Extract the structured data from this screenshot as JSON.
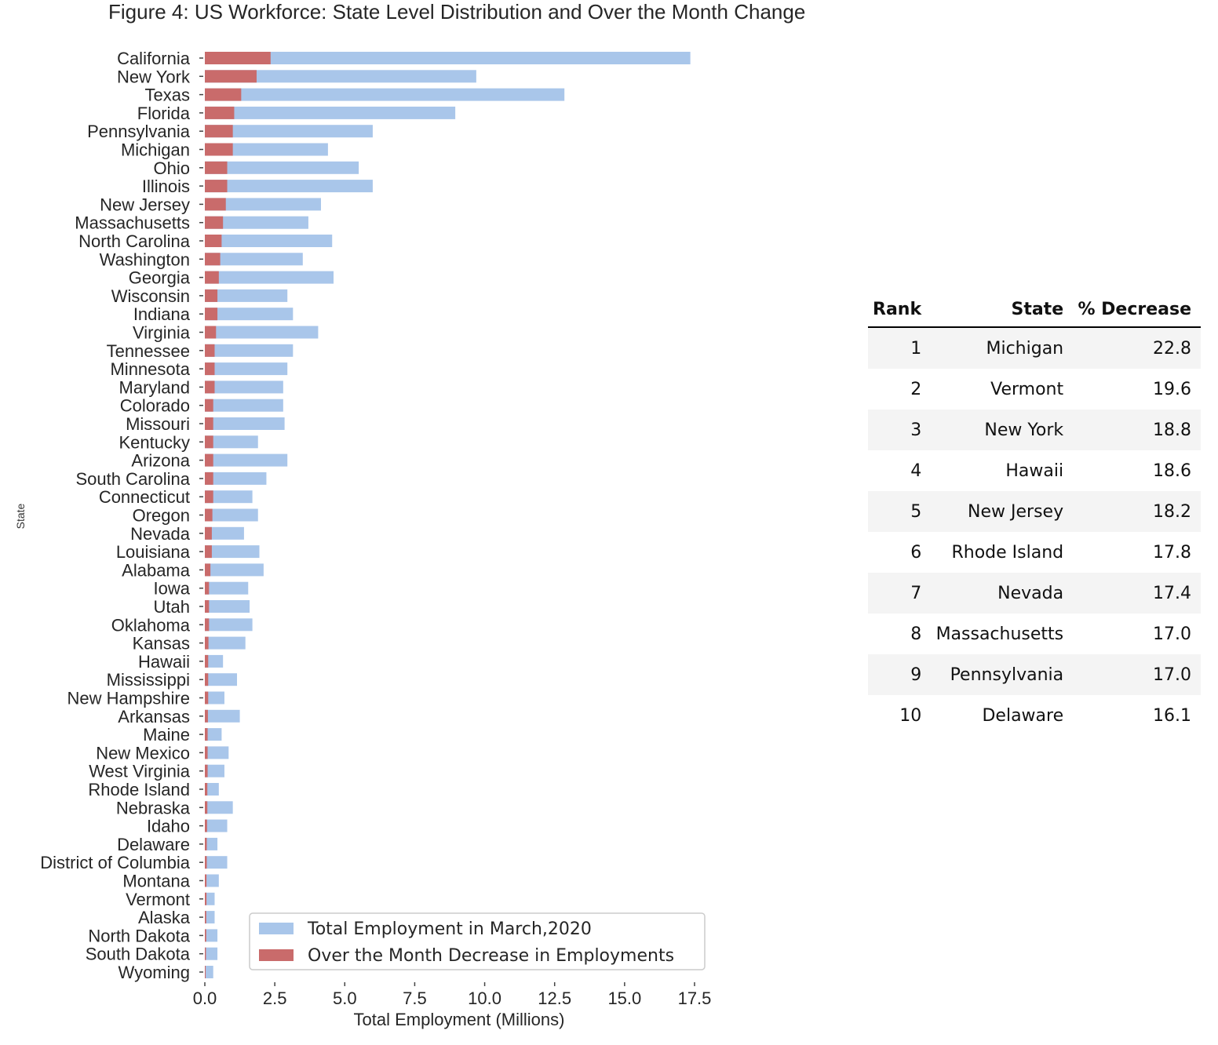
{
  "chart_data": {
    "type": "bar",
    "orientation": "horizontal",
    "title": "Figure 4: US Workforce: State Level Distribution and Over the Month Change",
    "xlabel": "Total Employment (Millions)",
    "ylabel": "State",
    "xlim": [
      0,
      17.5
    ],
    "xticks": [
      "0.0",
      "2.5",
      "5.0",
      "7.5",
      "10.0",
      "12.5",
      "15.0",
      "17.5"
    ],
    "grid": false,
    "legend_position": "bottom-right",
    "categories": [
      "California",
      "New York",
      "Texas",
      "Florida",
      "Pennsylvania",
      "Michigan",
      "Ohio",
      "Illinois",
      "New Jersey",
      "Massachusetts",
      "North Carolina",
      "Washington",
      "Georgia",
      "Wisconsin",
      "Indiana",
      "Virginia",
      "Tennessee",
      "Minnesota",
      "Maryland",
      "Colorado",
      "Missouri",
      "Kentucky",
      "Arizona",
      "South Carolina",
      "Connecticut",
      "Oregon",
      "Nevada",
      "Louisiana",
      "Alabama",
      "Iowa",
      "Utah",
      "Oklahoma",
      "Kansas",
      "Hawaii",
      "Mississippi",
      "New Hampshire",
      "Arkansas",
      "Maine",
      "New Mexico",
      "West Virginia",
      "Rhode Island",
      "Nebraska",
      "Idaho",
      "Delaware",
      "District of Columbia",
      "Montana",
      "Vermont",
      "Alaska",
      "North Dakota",
      "South Dakota",
      "Wyoming"
    ],
    "series": [
      {
        "name": "Total Employment in March,2020",
        "color": "#a9c6ea",
        "values": [
          17.35,
          9.7,
          12.85,
          8.95,
          6.0,
          4.4,
          5.5,
          6.0,
          4.15,
          3.7,
          4.55,
          3.5,
          4.6,
          2.95,
          3.15,
          4.05,
          3.15,
          2.95,
          2.8,
          2.8,
          2.85,
          1.9,
          2.95,
          2.2,
          1.7,
          1.9,
          1.4,
          1.95,
          2.1,
          1.55,
          1.6,
          1.7,
          1.45,
          0.65,
          1.15,
          0.7,
          1.25,
          0.6,
          0.85,
          0.7,
          0.5,
          1.0,
          0.8,
          0.45,
          0.8,
          0.5,
          0.35,
          0.35,
          0.45,
          0.45,
          0.3
        ]
      },
      {
        "name": "Over the Month Decrease in Employments",
        "color": "#c96b6b",
        "values": [
          2.35,
          1.85,
          1.3,
          1.05,
          1.0,
          1.0,
          0.8,
          0.8,
          0.75,
          0.65,
          0.6,
          0.55,
          0.5,
          0.45,
          0.45,
          0.4,
          0.35,
          0.35,
          0.35,
          0.3,
          0.3,
          0.3,
          0.3,
          0.3,
          0.3,
          0.27,
          0.25,
          0.25,
          0.2,
          0.15,
          0.15,
          0.15,
          0.13,
          0.12,
          0.12,
          0.12,
          0.11,
          0.1,
          0.1,
          0.1,
          0.09,
          0.09,
          0.08,
          0.07,
          0.07,
          0.06,
          0.06,
          0.05,
          0.05,
          0.04,
          0.03
        ]
      }
    ]
  },
  "rank_table": {
    "headers": [
      "Rank",
      "State",
      "% Decrease"
    ],
    "rows": [
      [
        "1",
        "Michigan",
        "22.8"
      ],
      [
        "2",
        "Vermont",
        "19.6"
      ],
      [
        "3",
        "New York",
        "18.8"
      ],
      [
        "4",
        "Hawaii",
        "18.6"
      ],
      [
        "5",
        "New Jersey",
        "18.2"
      ],
      [
        "6",
        "Rhode Island",
        "17.8"
      ],
      [
        "7",
        "Nevada",
        "17.4"
      ],
      [
        "8",
        "Massachusetts",
        "17.0"
      ],
      [
        "9",
        "Pennsylvania",
        "17.0"
      ],
      [
        "10",
        "Delaware",
        "16.1"
      ]
    ]
  }
}
